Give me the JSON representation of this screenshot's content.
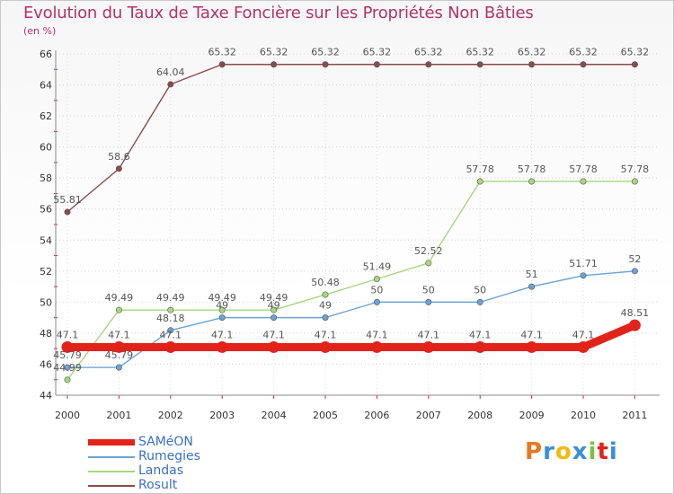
{
  "header": {
    "title": "Evolution du Taux de Taxe Foncière sur les Propriétés Non Bâties",
    "unit": "(en %)"
  },
  "logo": {
    "text": "Proxiti",
    "colors": [
      "#e87722",
      "#3a8fd6",
      "#f2b90f",
      "#3a8fd6",
      "#7cc242",
      "#e2231a",
      "#3a8fd6"
    ]
  },
  "chart_data": {
    "type": "line",
    "title": "Evolution du Taux de Taxe Foncière sur les Propriétés Non Bâties",
    "ylabel": "(en %)",
    "xlabel": "",
    "x": [
      "2000",
      "2001",
      "2002",
      "2003",
      "2004",
      "2005",
      "2006",
      "2007",
      "2008",
      "2009",
      "2010",
      "2011"
    ],
    "ylim": [
      44,
      66
    ],
    "yticks": [
      "44",
      "46",
      "48",
      "50",
      "52",
      "54",
      "56",
      "58",
      "60",
      "62",
      "64",
      "66"
    ],
    "grid": true,
    "legend_position": "bottom-left",
    "series": [
      {
        "name": "SAMéON",
        "color": "#e2231a",
        "width": "thick",
        "values": [
          47.1,
          47.1,
          47.1,
          47.1,
          47.1,
          47.1,
          47.1,
          47.1,
          47.1,
          47.1,
          47.1,
          48.51
        ],
        "labels": [
          "47.1",
          "47.1",
          "47.1",
          "47.1",
          "47.1",
          "47.1",
          "47.1",
          "47.1",
          "47.1",
          "47.1",
          "47.1",
          "48.51"
        ]
      },
      {
        "name": "Rumegies",
        "color": "#6aa3d5",
        "width": "thin",
        "values": [
          45.79,
          45.79,
          48.18,
          49,
          49,
          49,
          50,
          50,
          50,
          51,
          51.71,
          52
        ],
        "labels": [
          "45.79",
          "45.79",
          "48.18",
          "49",
          "49",
          "49",
          "50",
          "50",
          "50",
          "51",
          "51.71",
          "52"
        ]
      },
      {
        "name": "Landas",
        "color": "#a5d87c",
        "width": "thin",
        "values": [
          44.99,
          49.49,
          49.49,
          49.49,
          49.49,
          50.48,
          51.49,
          52.52,
          57.78,
          57.78,
          57.78,
          57.78
        ],
        "labels": [
          "44.99",
          "49.49",
          "49.49",
          "49.49",
          "49.49",
          "50.48",
          "51.49",
          "52.52",
          "57.78",
          "57.78",
          "57.78",
          "57.78"
        ]
      },
      {
        "name": "Rosult",
        "color": "#8b4a4a",
        "width": "thin",
        "values": [
          55.81,
          58.6,
          64.04,
          65.32,
          65.32,
          65.32,
          65.32,
          65.32,
          65.32,
          65.32,
          65.32,
          65.32
        ],
        "labels": [
          "55.81",
          "58.6",
          "64.04",
          "65.32",
          "65.32",
          "65.32",
          "65.32",
          "65.32",
          "65.32",
          "65.32",
          "65.32",
          "65.32"
        ]
      }
    ]
  }
}
